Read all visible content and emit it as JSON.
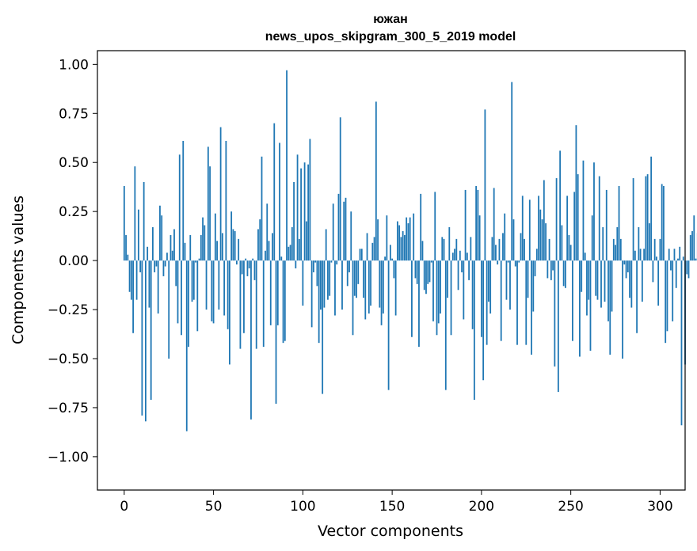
{
  "chart_data": {
    "type": "bar",
    "title": "южан",
    "subtitle": "news_upos_skipgram_300_5_2019 model",
    "xlabel": "Vector components",
    "ylabel": "Components values",
    "xlim": [
      -15,
      314
    ],
    "ylim": [
      -1.17,
      1.07
    ],
    "x_ticks": [
      0,
      50,
      100,
      150,
      200,
      250,
      300
    ],
    "x_tick_labels": [
      "0",
      "50",
      "100",
      "150",
      "200",
      "250",
      "300"
    ],
    "y_ticks": [
      1.0,
      0.75,
      0.5,
      0.25,
      0.0,
      -0.25,
      -0.5,
      -0.75,
      -1.0
    ],
    "y_tick_labels": [
      "1.00",
      "0.75",
      "0.50",
      "0.25",
      "0.00",
      "−0.25",
      "−0.50",
      "−0.75",
      "−1.00"
    ],
    "bar_color": "#1f77b4",
    "grid": false,
    "values": [
      0.38,
      0.13,
      0.03,
      -0.16,
      -0.2,
      -0.37,
      0.48,
      -0.2,
      0.26,
      -0.06,
      -0.79,
      0.4,
      -0.82,
      0.07,
      -0.24,
      -0.71,
      0.17,
      -0.06,
      -0.03,
      -0.27,
      0.28,
      0.23,
      -0.08,
      -0.03,
      0.04,
      -0.5,
      0.13,
      0.05,
      0.16,
      -0.13,
      -0.32,
      0.54,
      -0.38,
      0.61,
      0.09,
      -0.87,
      -0.44,
      0.13,
      -0.21,
      -0.2,
      -0.01,
      -0.36,
      0.01,
      0.13,
      0.22,
      0.18,
      -0.25,
      0.58,
      0.48,
      -0.31,
      -0.32,
      0.24,
      0.1,
      -0.25,
      0.68,
      0.14,
      -0.28,
      0.61,
      -0.35,
      -0.53,
      0.25,
      0.16,
      0.15,
      -0.02,
      0.11,
      -0.45,
      -0.07,
      -0.37,
      0.01,
      -0.08,
      -0.04,
      -0.81,
      0.01,
      -0.1,
      -0.45,
      0.16,
      0.21,
      0.53,
      -0.44,
      0.05,
      0.29,
      0.1,
      -0.33,
      0.14,
      0.7,
      -0.73,
      -0.33,
      0.6,
      0.02,
      -0.42,
      -0.41,
      0.97,
      0.07,
      0.08,
      0.17,
      0.4,
      -0.04,
      0.54,
      0.11,
      0.47,
      -0.23,
      0.5,
      0.2,
      0.49,
      0.62,
      -0.34,
      -0.06,
      -0.01,
      -0.13,
      -0.42,
      -0.25,
      -0.68,
      -0.24,
      0.16,
      -0.2,
      -0.18,
      -0.01,
      0.29,
      -0.28,
      -0.02,
      0.34,
      0.73,
      -0.25,
      0.3,
      0.32,
      -0.13,
      -0.06,
      0.25,
      -0.38,
      -0.18,
      -0.19,
      -0.12,
      0.06,
      0.06,
      -0.19,
      -0.3,
      0.14,
      -0.27,
      -0.23,
      0.09,
      0.12,
      0.81,
      0.21,
      -0.24,
      -0.33,
      -0.27,
      0.02,
      0.23,
      -0.66,
      0.08,
      0.01,
      -0.09,
      -0.28,
      0.2,
      0.18,
      0.12,
      0.15,
      0.13,
      0.22,
      0.19,
      0.22,
      -0.39,
      0.24,
      -0.09,
      -0.12,
      -0.44,
      0.34,
      0.1,
      -0.15,
      -0.17,
      -0.12,
      -0.11,
      -0.01,
      -0.31,
      0.35,
      -0.38,
      -0.32,
      -0.27,
      0.12,
      0.11,
      -0.66,
      -0.19,
      0.17,
      -0.38,
      0.04,
      0.06,
      0.11,
      -0.15,
      0.05,
      -0.06,
      -0.3,
      0.36,
      0.04,
      -0.1,
      0.12,
      -0.35,
      -0.71,
      0.38,
      0.36,
      0.23,
      -0.39,
      -0.61,
      0.77,
      -0.43,
      -0.21,
      -0.27,
      0.12,
      0.37,
      0.08,
      -0.02,
      0.11,
      -0.41,
      0.14,
      0.24,
      -0.2,
      -0.01,
      -0.25,
      0.91,
      0.21,
      -0.03,
      -0.43,
      -0.01,
      0.14,
      0.33,
      0.11,
      -0.43,
      -0.19,
      0.31,
      -0.48,
      -0.26,
      -0.08,
      0.06,
      0.33,
      0.26,
      0.21,
      0.41,
      0.19,
      -0.09,
      0.11,
      -0.1,
      -0.05,
      -0.54,
      0.42,
      -0.67,
      0.56,
      0.18,
      -0.13,
      -0.14,
      0.33,
      0.13,
      0.08,
      -0.41,
      0.35,
      0.69,
      0.44,
      -0.49,
      -0.16,
      0.51,
      0.04,
      -0.28,
      -0.2,
      -0.46,
      0.23,
      0.5,
      -0.18,
      -0.2,
      0.43,
      -0.24,
      0.17,
      -0.21,
      0.36,
      -0.31,
      -0.48,
      -0.26,
      0.11,
      0.08,
      0.17,
      0.38,
      0.11,
      -0.5,
      -0.02,
      -0.09,
      -0.06,
      -0.19,
      -0.24,
      0.42,
      0.05,
      -0.37,
      0.17,
      0.06,
      -0.21,
      0.06,
      0.43,
      0.44,
      0.19,
      0.53,
      -0.11,
      0.11,
      0.02,
      -0.23,
      0.11,
      0.39,
      0.38,
      -0.42,
      -0.36,
      0.06,
      -0.05,
      -0.31,
      0.06,
      -0.14,
      0.01,
      0.07,
      -0.84,
      0.02,
      -0.53,
      -0.07,
      -0.09,
      0.13,
      0.15,
      0.23,
      0.01,
      0.14,
      0.02,
      0.06
    ]
  }
}
